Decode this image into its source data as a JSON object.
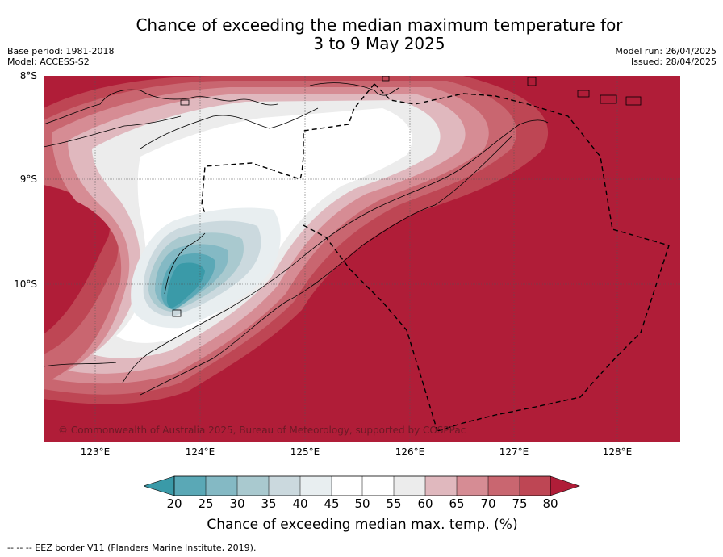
{
  "title_line1": "Chance of exceeding the median maximum temperature for",
  "title_line2": "3 to 9 May 2025",
  "base_period": "Base period: 1981-2018",
  "model": "Model: ACCESS-S2",
  "model_run": "Model run: 26/04/2025",
  "issued": "Issued: 28/04/2025",
  "lat_labels": [
    "8°S",
    "9°S",
    "10°S"
  ],
  "lon_labels": [
    "123°E",
    "124°E",
    "125°E",
    "126°E",
    "127°E",
    "128°E"
  ],
  "copyright": "© Commonwealth of Australia 2025, Bureau of Meteorology, supported by COSPPac",
  "legend": {
    "title": "Chance of exceeding median max. temp. (%)",
    "ticks": [
      "20",
      "25",
      "30",
      "35",
      "40",
      "45",
      "50",
      "55",
      "60",
      "65",
      "70",
      "75",
      "80"
    ],
    "colors": {
      "below_20": "#3a9aa8",
      "20_25": "#5aa8b6",
      "25_30": "#84b9c4",
      "30_35": "#a9c9cf",
      "35_40": "#cbd9de",
      "40_45": "#e8eef0",
      "45_50": "#ffffff",
      "50_55": "#ffffff",
      "55_60": "#ececec",
      "60_65": "#e0b8be",
      "65_70": "#d68c94",
      "70_75": "#c96670",
      "75_80": "#be4654",
      "above_80": "#b01d38"
    }
  },
  "footnote": "--  --  -- EEZ border V11 (Flanders Marine Institute, 2019)."
}
